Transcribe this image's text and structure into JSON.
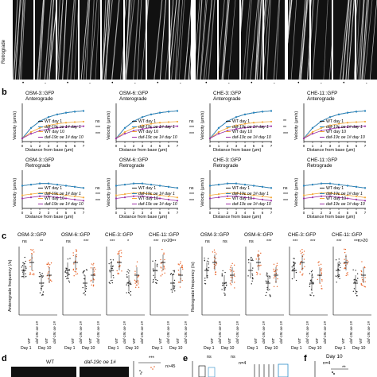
{
  "side_labels": {
    "retrograde": "Retrograde"
  },
  "panel_b": {
    "letter": "b",
    "ylabel": "Velocity (μm/s)",
    "xlabel": "Distance from base (μm)",
    "legend": [
      "WT day 1",
      "daf-19c oe 1# day 1",
      "WT day 10",
      "daf-19c oe 1# day 10"
    ],
    "plots": [
      {
        "title": "OSM-3::GFP",
        "direction": "Anterograde",
        "sig": [
          "ns",
          "***",
          "***"
        ]
      },
      {
        "title": "OSM-6::GFP",
        "direction": "Anterograde",
        "sig": [
          "ns",
          "***",
          "***"
        ]
      },
      {
        "title": "CHE-3::GFP",
        "direction": "Anterograde",
        "sig": [
          "**",
          "**",
          "***"
        ]
      },
      {
        "title": "CHE-11::GFP",
        "direction": "Anterograde",
        "sig": [
          "ns",
          "***",
          "***"
        ]
      },
      {
        "title": "OSM-3::GFP",
        "direction": "Retrograde",
        "sig": [
          "ns",
          "***",
          "***"
        ]
      },
      {
        "title": "OSM-6::GFP",
        "direction": "Retrograde",
        "sig": [
          "ns",
          "***",
          "***"
        ]
      },
      {
        "title": "CHE-3::GFP",
        "direction": "Retrograde",
        "sig": [
          "ns",
          "***",
          "***"
        ]
      },
      {
        "title": "CHE-11::GFP",
        "direction": "Retrograde",
        "sig": [
          "ns",
          "***",
          "***"
        ]
      }
    ]
  },
  "panel_c": {
    "letter": "c",
    "ylabel_left": "Anterograde frequency (/s)",
    "ylabel_right": "Retrograde frequency (/s)",
    "n_note": "n>20",
    "groups": [
      "WT",
      "daf-19c oe 1#",
      "WT",
      "daf-19c oe 1#"
    ],
    "days": [
      "Day 1",
      "Day 10"
    ],
    "anterograde": [
      {
        "title": "OSM-3::GFP",
        "sig": [
          "ns",
          "**"
        ]
      },
      {
        "title": "OSM-6::GFP",
        "sig": [
          "ns",
          "***"
        ]
      },
      {
        "title": "CHE-3::GFP",
        "sig": [
          "***",
          "*"
        ]
      },
      {
        "title": "CHE-11::GFP",
        "sig": [
          "***",
          "***"
        ]
      }
    ],
    "retrograde": [
      {
        "title": "OSM-3::GFP",
        "sig": [
          "ns",
          "ns"
        ]
      },
      {
        "title": "OSM-6::GFP",
        "sig": [
          "ns",
          "***"
        ]
      },
      {
        "title": "CHE-3::GFP",
        "sig": [
          "***",
          "***"
        ]
      },
      {
        "title": "CHE-11::GFP",
        "sig": [
          "***",
          "***"
        ]
      }
    ]
  },
  "panel_d": {
    "letter": "d",
    "label_wt": "WT",
    "label_oe": "daf-19c oe 1#",
    "n_note": "n>45",
    "sig": "***"
  },
  "panel_e": {
    "letter": "e",
    "sig": [
      "ns",
      "ns"
    ],
    "n_note": "n=4"
  },
  "panel_f": {
    "letter": "f",
    "title": "Day 10",
    "n_note": "n=4",
    "sig": "**"
  }
}
